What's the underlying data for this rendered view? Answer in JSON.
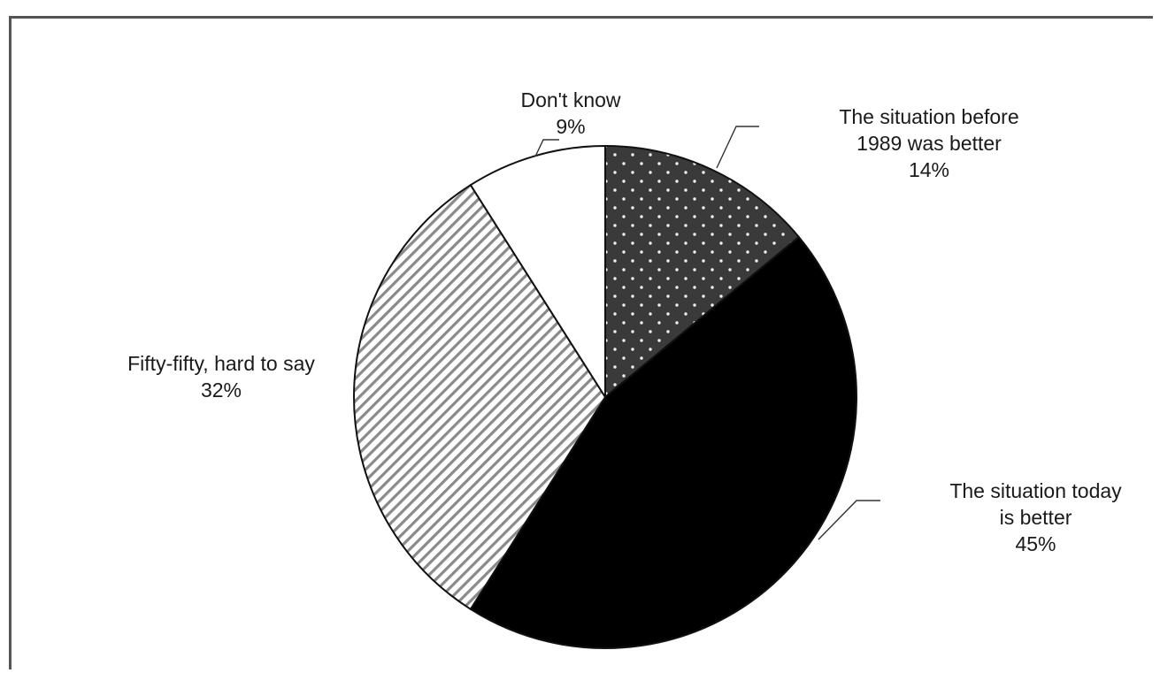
{
  "chart_data": {
    "type": "pie",
    "start_angle_deg": 0,
    "direction": "clockwise",
    "slices": [
      {
        "label_lines": [
          "The situation before",
          "1989 was better"
        ],
        "value": 14,
        "value_label": "14%",
        "pattern": "dots",
        "fill": "#3a3a3a"
      },
      {
        "label_lines": [
          "The situation today",
          "is better"
        ],
        "value": 45,
        "value_label": "45%",
        "pattern": "solid",
        "fill": "#000000"
      },
      {
        "label_lines": [
          "Fifty-fifty, hard to say"
        ],
        "value": 32,
        "value_label": "32%",
        "pattern": "diagonal-stripes",
        "fill": "#ffffff"
      },
      {
        "label_lines": [
          "Don't know"
        ],
        "value": 9,
        "value_label": "9%",
        "pattern": "none",
        "fill": "#ffffff"
      }
    ],
    "legend": "none"
  }
}
